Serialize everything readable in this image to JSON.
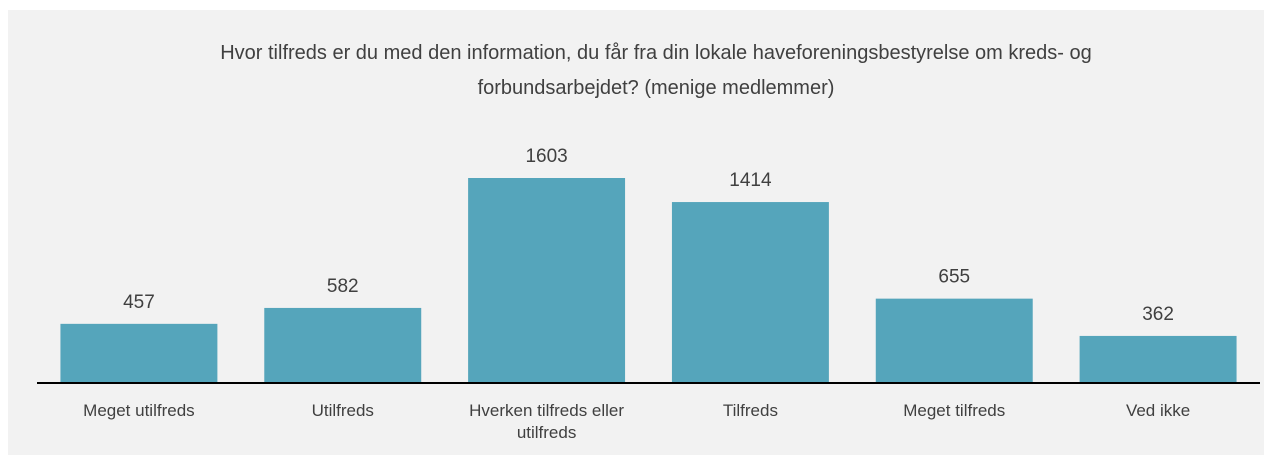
{
  "chart_data": {
    "type": "bar",
    "title": "Hvor tilfreds er du med den information, du får fra din lokale haveforeningsbestyrelse om kreds- og forbundsarbejdet? (menige medlemmer)",
    "categories": [
      "Meget utilfreds",
      "Utilfreds",
      "Hverken tilfreds eller utilfreds",
      "Tilfreds",
      "Meget tilfreds",
      "Ved ikke"
    ],
    "values": [
      457,
      582,
      1603,
      1414,
      655,
      362
    ],
    "color": "#55a5bb"
  }
}
